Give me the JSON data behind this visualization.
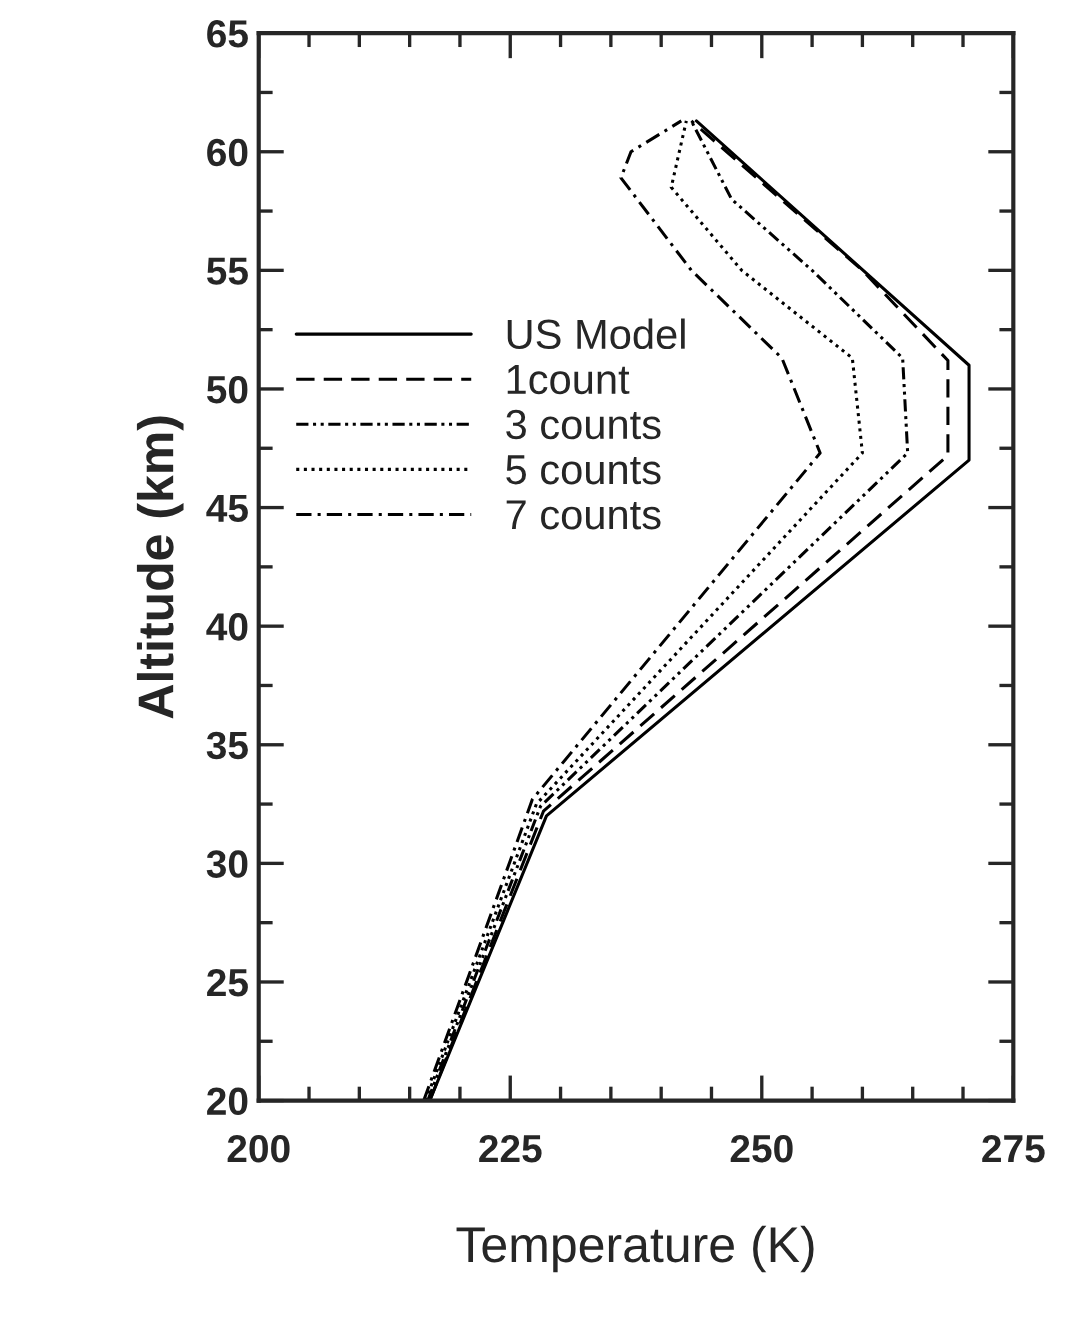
{
  "chart_data": {
    "type": "line",
    "xlabel": "Temperature (K)",
    "ylabel": "Altitude (km)",
    "xlim": [
      200,
      275
    ],
    "xticks": [
      200,
      225,
      250,
      275
    ],
    "ylim": [
      20,
      65
    ],
    "yticks": [
      20,
      25,
      30,
      35,
      40,
      45,
      50,
      55,
      60,
      65
    ],
    "grid": false,
    "legend": "center left",
    "marker": "none",
    "series": [
      {
        "name": "US Model",
        "color": "#000000",
        "line_style": "solid",
        "x": [
          217,
          228.6,
          270.6,
          270.6,
          243.5
        ],
        "values": [
          20,
          32,
          47,
          51,
          61.3
        ]
      },
      {
        "name": "1count",
        "color": "#000000",
        "line_style": "dashed",
        "x": [
          217,
          228.3,
          268.5,
          268.5,
          260,
          243
        ],
        "values": [
          20,
          32.2,
          47.2,
          51.2,
          55,
          61.3
        ]
      },
      {
        "name": "3 counts",
        "color": "#000000",
        "line_style": "dashdotdot",
        "x": [
          216.8,
          228,
          264.5,
          264,
          255,
          247,
          243
        ],
        "values": [
          20,
          32.4,
          47.3,
          51.3,
          55,
          58,
          61.3
        ]
      },
      {
        "name": "5 counts",
        "color": "#000000",
        "line_style": "dotted",
        "x": [
          216.6,
          227.6,
          260,
          259,
          248,
          241,
          242.5
        ],
        "values": [
          20,
          32.5,
          47.3,
          51.3,
          55,
          58.5,
          61.3
        ]
      },
      {
        "name": "7 counts",
        "color": "#000000",
        "line_style": "dashdot",
        "x": [
          216.4,
          227.2,
          255.8,
          252,
          243,
          236,
          237,
          242
        ],
        "values": [
          20,
          32.7,
          47.3,
          51.3,
          55,
          58.9,
          60,
          61.3
        ]
      }
    ]
  }
}
